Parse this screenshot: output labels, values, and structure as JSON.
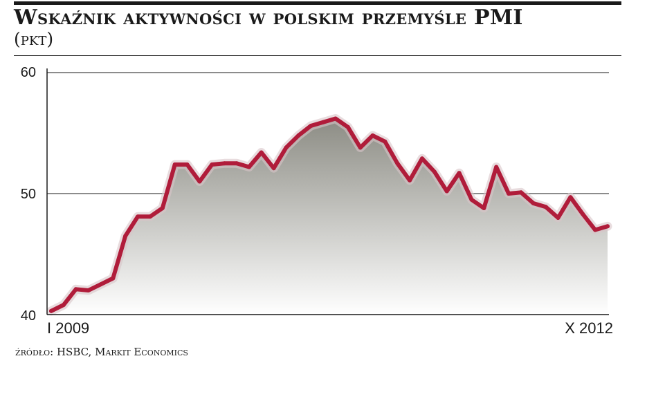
{
  "chart_data": {
    "type": "area",
    "title": "Wskaźnik aktywności w polskim przemyśle PMI",
    "subtitle": "(pkt)",
    "ylim": [
      40,
      60
    ],
    "yticks": [
      "60",
      "50",
      "40"
    ],
    "x_start_label": "I 2009",
    "x_end_label": "X 2012",
    "grid": "horizontal",
    "source": "źródło: HSBC, Markit Economics",
    "colors": {
      "line": "#b01c3a",
      "fill_top": "#8c8c84",
      "fill_bottom": "#ffffff"
    },
    "x": [
      "2009-01",
      "2009-02",
      "2009-03",
      "2009-04",
      "2009-05",
      "2009-06",
      "2009-07",
      "2009-08",
      "2009-09",
      "2009-10",
      "2009-11",
      "2009-12",
      "2010-01",
      "2010-02",
      "2010-03",
      "2010-04",
      "2010-05",
      "2010-06",
      "2010-07",
      "2010-08",
      "2010-09",
      "2010-10",
      "2010-11",
      "2010-12",
      "2011-01",
      "2011-02",
      "2011-03",
      "2011-04",
      "2011-05",
      "2011-06",
      "2011-07",
      "2011-08",
      "2011-09",
      "2011-10",
      "2011-11",
      "2011-12",
      "2012-01",
      "2012-02",
      "2012-03",
      "2012-04",
      "2012-05",
      "2012-06",
      "2012-07",
      "2012-08",
      "2012-09",
      "2012-10"
    ],
    "values": [
      40.3,
      40.8,
      42.1,
      42.0,
      42.5,
      43.0,
      46.5,
      48.1,
      48.1,
      48.8,
      52.4,
      52.4,
      51.0,
      52.4,
      52.5,
      52.5,
      52.2,
      53.4,
      52.1,
      53.8,
      54.8,
      55.6,
      55.9,
      56.2,
      55.5,
      53.8,
      54.8,
      54.3,
      52.5,
      51.1,
      52.9,
      51.8,
      50.2,
      51.7,
      49.5,
      48.8,
      52.2,
      50.0,
      50.1,
      49.2,
      48.9,
      48.0,
      49.7,
      48.3,
      47.0,
      47.3
    ]
  }
}
